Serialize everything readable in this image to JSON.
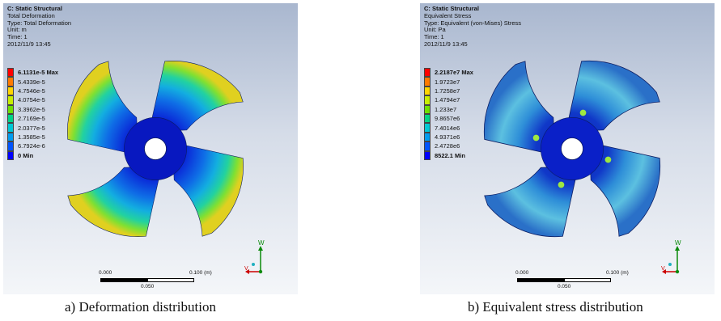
{
  "panels": [
    {
      "header": {
        "title": "C: Static Structural",
        "line1": "Total Deformation",
        "line2": "Type: Total Deformation",
        "line3": "Unit: m",
        "line4": "Time: 1",
        "line5": "2012/11/9 13:45"
      },
      "legend": [
        {
          "label": "6.1131e-5 Max",
          "color": "#ff0000"
        },
        {
          "label": "5.4339e-5",
          "color": "#ff7a00"
        },
        {
          "label": "4.7546e-5",
          "color": "#ffd500"
        },
        {
          "label": "4.0754e-5",
          "color": "#c8ee00"
        },
        {
          "label": "3.3962e-5",
          "color": "#6fe000"
        },
        {
          "label": "2.7169e-5",
          "color": "#00d488"
        },
        {
          "label": "2.0377e-5",
          "color": "#00c8d6"
        },
        {
          "label": "1.3585e-5",
          "color": "#009cf0"
        },
        {
          "label": "6.7924e-6",
          "color": "#0054ff"
        },
        {
          "label": "0 Min",
          "color": "#0000ff"
        }
      ],
      "scale": {
        "left": "0.000",
        "right": "0.100 (m)",
        "mid": "0.050"
      },
      "caption": "a) Deformation distribution"
    },
    {
      "header": {
        "title": "C: Static Structural",
        "line1": "Equivalent Stress",
        "line2": "Type: Equivalent (von-Mises) Stress",
        "line3": "Unit: Pa",
        "line4": "Time: 1",
        "line5": "2012/11/9 13:45"
      },
      "legend": [
        {
          "label": "2.2187e7 Max",
          "color": "#ff0000"
        },
        {
          "label": "1.9723e7",
          "color": "#ff7a00"
        },
        {
          "label": "1.7258e7",
          "color": "#ffd500"
        },
        {
          "label": "1.4794e7",
          "color": "#c8ee00"
        },
        {
          "label": "1.233e7",
          "color": "#6fe000"
        },
        {
          "label": "9.8657e6",
          "color": "#00d488"
        },
        {
          "label": "7.4014e6",
          "color": "#00c8d6"
        },
        {
          "label": "4.9371e6",
          "color": "#009cf0"
        },
        {
          "label": "2.4728e6",
          "color": "#0054ff"
        },
        {
          "label": "8522.1 Min",
          "color": "#0000ff"
        }
      ],
      "scale": {
        "left": "0.000",
        "right": "0.100 (m)",
        "mid": "0.050"
      },
      "caption": "b) Equivalent stress distribution"
    }
  ],
  "triad": {
    "w": "W",
    "v": "V"
  }
}
